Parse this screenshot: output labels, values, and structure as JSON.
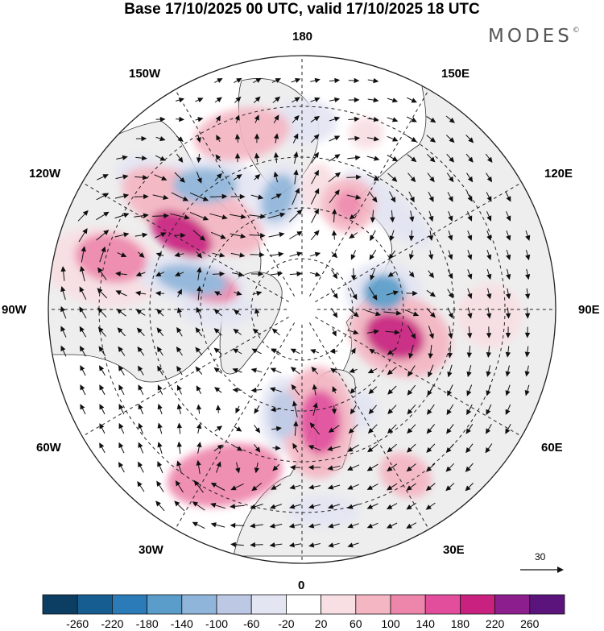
{
  "title": "Base 17/10/2025 00 UTC, valid 17/10/2025 18 UTC",
  "brand": {
    "text": "MODES",
    "mark": "©"
  },
  "longitude_labels": {
    "lon_180": "180",
    "lon_150E": "150E",
    "lon_120E": "120E",
    "lon_90E": "90E",
    "lon_60E": "60E",
    "lon_30E": "30E",
    "lon_0": "0",
    "lon_30W": "30W",
    "lon_60W": "60W",
    "lon_90W": "90W",
    "lon_120W": "120W",
    "lon_150W": "150W"
  },
  "reference_vector": {
    "value": "30"
  },
  "colorbar": {
    "labels": [
      "-260",
      "-220",
      "-180",
      "-140",
      "-100",
      "-60",
      "-20",
      "20",
      "60",
      "100",
      "140",
      "180",
      "220",
      "260"
    ],
    "colors": [
      "#0c3d63",
      "#165d92",
      "#2a7bb8",
      "#5a9dcb",
      "#8fb5da",
      "#bcc8e4",
      "#e3e5f3",
      "#ffffff",
      "#f8dfe3",
      "#f4b6c3",
      "#ee86ab",
      "#e24e9b",
      "#c9217f",
      "#8c1e8d",
      "#5b147c"
    ]
  },
  "anomaly_field": [
    {
      "ang": 238,
      "r": 0.56,
      "rx": 42,
      "ry": 24,
      "rot": 30,
      "level": 200,
      "name": "red-anomaly-north-atlantic"
    },
    {
      "ang": 228,
      "r": 0.58,
      "rx": 95,
      "ry": 42,
      "rot": 25,
      "level": 70,
      "name": "red-anomaly-north-atlantic-halo"
    },
    {
      "ang": 256,
      "r": 0.38,
      "rx": 38,
      "ry": 20,
      "rot": 15,
      "level": 120,
      "name": "red-anomaly-greenland"
    },
    {
      "ang": 255,
      "r": 0.78,
      "rx": 45,
      "ry": 30,
      "rot": 10,
      "level": 100,
      "name": "red-anomaly-canada-west"
    },
    {
      "ang": 258,
      "r": 0.8,
      "rx": 75,
      "ry": 48,
      "rot": 10,
      "level": 50,
      "name": "red-anomaly-canada-west-halo"
    },
    {
      "ang": 74,
      "r": 0.38,
      "rx": 38,
      "ry": 28,
      "rot": 20,
      "level": 190,
      "name": "red-anomaly-siberia"
    },
    {
      "ang": 75,
      "r": 0.4,
      "rx": 65,
      "ry": 50,
      "rot": 20,
      "level": 60,
      "name": "red-anomaly-siberia-halo"
    },
    {
      "ang": 9,
      "r": 0.45,
      "rx": 26,
      "ry": 40,
      "rot": 0,
      "level": 160,
      "name": "red-anomaly-europe"
    },
    {
      "ang": 8,
      "r": 0.45,
      "rx": 45,
      "ry": 70,
      "rot": 0,
      "level": 60,
      "name": "red-anomaly-europe-halo"
    },
    {
      "ang": 156,
      "r": 0.45,
      "rx": 16,
      "ry": 18,
      "rot": 0,
      "level": 130,
      "name": "red-anomaly-alaska"
    },
    {
      "ang": 156,
      "r": 0.45,
      "rx": 34,
      "ry": 34,
      "rot": 0,
      "level": 60,
      "name": "red-anomaly-alaska-halo"
    },
    {
      "ang": 160,
      "r": 0.74,
      "rx": 22,
      "ry": 20,
      "rot": 0,
      "level": 40,
      "name": "red-anomaly-pacific-nw"
    },
    {
      "ang": 172,
      "r": 0.48,
      "rx": 22,
      "ry": 32,
      "rot": 0,
      "level": 50,
      "name": "red-anomaly-bering"
    },
    {
      "ang": 199,
      "r": 0.73,
      "rx": 60,
      "ry": 32,
      "rot": -10,
      "level": 90,
      "name": "red-anomaly-west-pacific"
    },
    {
      "ang": 335,
      "r": 0.72,
      "rx": 72,
      "ry": 38,
      "rot": -10,
      "level": 100,
      "name": "red-anomaly-mid-atlantic"
    },
    {
      "ang": 32,
      "r": 0.77,
      "rx": 34,
      "ry": 26,
      "rot": 30,
      "level": 60,
      "name": "red-anomaly-turkey"
    },
    {
      "ang": 88,
      "r": 0.74,
      "rx": 40,
      "ry": 40,
      "rot": 0,
      "level": 40,
      "name": "red-anomaly-central-asia"
    },
    {
      "ang": 255,
      "r": 0.45,
      "rx": 45,
      "ry": 18,
      "rot": 10,
      "level": -130,
      "name": "blue-anomaly-labrador"
    },
    {
      "ang": 255,
      "r": 0.45,
      "rx": 70,
      "ry": 30,
      "rot": 10,
      "level": -50,
      "name": "blue-anomaly-labrador-halo"
    },
    {
      "ang": 218,
      "r": 0.62,
      "rx": 40,
      "ry": 22,
      "rot": 0,
      "level": -110,
      "name": "blue-anomaly-atlantic-south"
    },
    {
      "ang": 218,
      "r": 0.62,
      "rx": 70,
      "ry": 34,
      "rot": 0,
      "level": -40,
      "name": "blue-anomaly-atlantic-south-halo"
    },
    {
      "ang": 350,
      "r": 0.42,
      "rx": 18,
      "ry": 30,
      "rot": 0,
      "level": -100,
      "name": "blue-anomaly-iberia"
    },
    {
      "ang": 350,
      "r": 0.42,
      "rx": 30,
      "ry": 48,
      "rot": 0,
      "level": -40,
      "name": "blue-anomaly-iberia-halo"
    },
    {
      "ang": 102,
      "r": 0.33,
      "rx": 26,
      "ry": 22,
      "rot": 0,
      "level": -170,
      "name": "blue-anomaly-ural"
    },
    {
      "ang": 102,
      "r": 0.33,
      "rx": 48,
      "ry": 38,
      "rot": 0,
      "level": -50,
      "name": "blue-anomaly-ural-halo"
    },
    {
      "ang": 192,
      "r": 0.45,
      "rx": 20,
      "ry": 30,
      "rot": 20,
      "level": -110,
      "name": "blue-anomaly-chukchi"
    },
    {
      "ang": 192,
      "r": 0.45,
      "rx": 34,
      "ry": 44,
      "rot": 20,
      "level": -40,
      "name": "blue-anomaly-chukchi-halo"
    },
    {
      "ang": 140,
      "r": 0.52,
      "rx": 70,
      "ry": 22,
      "rot": 40,
      "level": -50,
      "name": "blue-anomaly-east-siberia"
    },
    {
      "ang": 179,
      "r": 0.74,
      "rx": 40,
      "ry": 28,
      "rot": 0,
      "level": -50,
      "name": "blue-anomaly-north-pacific"
    },
    {
      "ang": 230,
      "r": 0.83,
      "rx": 30,
      "ry": 24,
      "rot": 0,
      "level": -40,
      "name": "blue-anomaly-gulf-alaska"
    },
    {
      "ang": 30,
      "r": 0.46,
      "rx": 22,
      "ry": 24,
      "rot": 0,
      "level": -40,
      "name": "blue-anomaly-black-sea"
    },
    {
      "ang": 6,
      "r": 0.8,
      "rx": 44,
      "ry": 20,
      "rot": 0,
      "level": -50,
      "name": "blue-anomaly-north-africa"
    },
    {
      "ang": 270,
      "r": 0.33,
      "rx": 48,
      "ry": 22,
      "rot": 0,
      "level": -50,
      "name": "blue-anomaly-hudson"
    }
  ]
}
